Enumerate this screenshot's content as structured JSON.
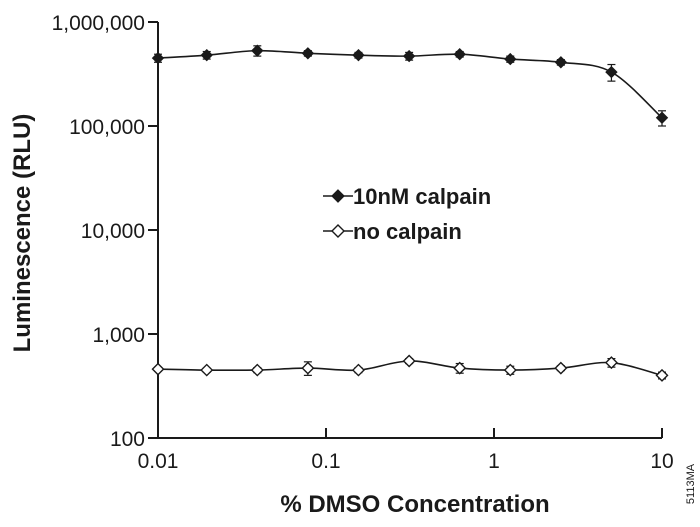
{
  "chart_data": {
    "type": "line",
    "xlabel": "% DMSO Concentration",
    "ylabel": "Luminescence (RLU)",
    "x_scale": "log",
    "y_scale": "log",
    "xlim": [
      0.01,
      10
    ],
    "ylim": [
      100,
      1000000
    ],
    "x_ticks": [
      {
        "value": 0.01,
        "label": "0.01"
      },
      {
        "value": 0.1,
        "label": "0.1"
      },
      {
        "value": 1,
        "label": "1"
      },
      {
        "value": 10,
        "label": "10"
      }
    ],
    "y_ticks": [
      {
        "value": 100,
        "label": "100"
      },
      {
        "value": 1000,
        "label": "1,000"
      },
      {
        "value": 10000,
        "label": "10,000"
      },
      {
        "value": 100000,
        "label": "100,000"
      },
      {
        "value": 1000000,
        "label": "1,000,000"
      }
    ],
    "x": [
      0.01,
      0.0195,
      0.039,
      0.078,
      0.156,
      0.3125,
      0.625,
      1.25,
      2.5,
      5,
      10
    ],
    "series": [
      {
        "name": "10nM calpain",
        "marker": "filled-diamond",
        "color": "#1a1a1a",
        "values": [
          450000,
          480000,
          530000,
          500000,
          480000,
          470000,
          490000,
          440000,
          410000,
          330000,
          120000
        ],
        "errors": [
          40000,
          40000,
          60000,
          30000,
          30000,
          40000,
          30000,
          30000,
          25000,
          60000,
          20000
        ]
      },
      {
        "name": "no calpain",
        "marker": "open-diamond",
        "color": "#1a1a1a",
        "values": [
          460,
          450,
          450,
          470,
          450,
          550,
          470,
          450,
          470,
          530,
          400
        ],
        "errors": [
          20,
          20,
          25,
          70,
          25,
          30,
          50,
          40,
          25,
          50,
          30
        ]
      }
    ],
    "legend_position": "center",
    "grid": false
  },
  "figure_code": "5113MA"
}
